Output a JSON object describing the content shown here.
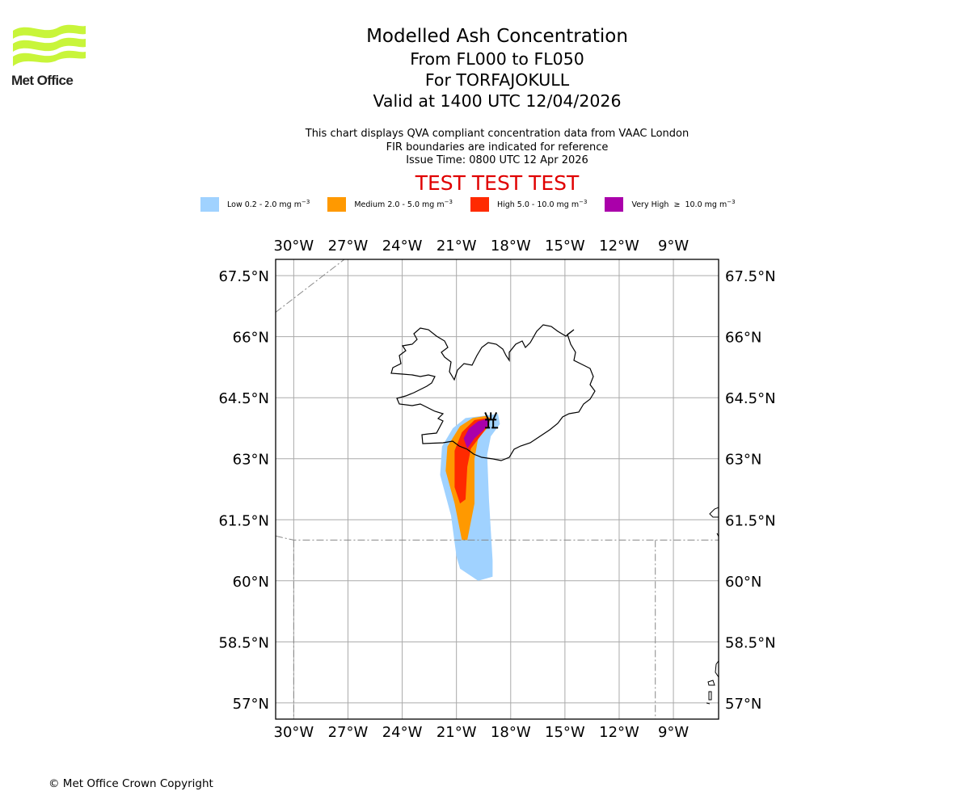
{
  "logo": {
    "name": "Met Office",
    "icon": "met-office-waves-icon",
    "color": "#c8f53a"
  },
  "header": {
    "title": "Modelled Ash Concentration",
    "level_range": "From FL000 to FL050",
    "volcano": "For TORFAJOKULL",
    "valid_time": "Valid at 1400 UTC 12/04/2026"
  },
  "description": {
    "line1": "This chart displays QVA compliant concentration data from VAAC London",
    "line2": "FIR boundaries are indicated for reference",
    "issue_time": "Issue Time: 0800 UTC 12 Apr 2026"
  },
  "test_banner": {
    "text": "TEST TEST TEST",
    "color": "#e00000"
  },
  "legend": [
    {
      "label": "Low 0.2 - 2.0 mg m",
      "exp": "−3",
      "color": "#a0d2ff"
    },
    {
      "label": "Medium 2.0 - 5.0 mg m",
      "exp": "−3",
      "color": "#ff9900"
    },
    {
      "label": "High 5.0 - 10.0 mg m",
      "exp": "−3",
      "color": "#ff2a00"
    },
    {
      "label": "Very High  ≥  10.0 mg m",
      "exp": "−3",
      "color": "#aa00aa"
    }
  ],
  "chart_data": {
    "type": "heatmap",
    "title": "Modelled Ash Concentration",
    "subtitle": "From FL000 to FL050 — For TORFAJOKULL — Valid at 1400 UTC 12/04/2026",
    "projection": "lat-lon",
    "lon_range": [
      -31,
      -6.5
    ],
    "lat_range": [
      56.6,
      67.9
    ],
    "x_ticks": [
      "30°W",
      "27°W",
      "24°W",
      "21°W",
      "18°W",
      "15°W",
      "12°W",
      "9°W"
    ],
    "x_tick_values": [
      -30,
      -27,
      -24,
      -21,
      -18,
      -15,
      -12,
      -9
    ],
    "y_ticks": [
      "67.5°N",
      "66°N",
      "64.5°N",
      "63°N",
      "61.5°N",
      "60°N",
      "58.5°N",
      "57°N"
    ],
    "y_tick_values": [
      67.5,
      66,
      64.5,
      63,
      61.5,
      60,
      58.5,
      57
    ],
    "grid": true,
    "volcano": {
      "name": "TORFAJOKULL",
      "lon": -19.1,
      "lat": 63.9
    },
    "ash_levels": [
      {
        "level": "Low",
        "color": "#a0d2ff",
        "polygon": [
          [
            -19.6,
            64.05
          ],
          [
            -18.7,
            64.1
          ],
          [
            -18.6,
            63.85
          ],
          [
            -19.1,
            63.55
          ],
          [
            -19.3,
            63.1
          ],
          [
            -19.2,
            62.0
          ],
          [
            -19.0,
            60.5
          ],
          [
            -19.0,
            60.1
          ],
          [
            -19.8,
            60.0
          ],
          [
            -20.8,
            60.3
          ],
          [
            -21.0,
            60.6
          ],
          [
            -21.3,
            61.6
          ],
          [
            -21.9,
            62.6
          ],
          [
            -21.8,
            63.3
          ],
          [
            -21.2,
            63.75
          ],
          [
            -20.5,
            64.0
          ]
        ]
      },
      {
        "level": "Medium",
        "color": "#ff9900",
        "polygon": [
          [
            -19.4,
            64.05
          ],
          [
            -19.1,
            64.0
          ],
          [
            -19.3,
            63.75
          ],
          [
            -19.8,
            63.5
          ],
          [
            -20.0,
            63.0
          ],
          [
            -20.0,
            61.9
          ],
          [
            -20.4,
            61.0
          ],
          [
            -20.7,
            61.0
          ],
          [
            -21.1,
            61.9
          ],
          [
            -21.6,
            62.7
          ],
          [
            -21.5,
            63.3
          ],
          [
            -20.8,
            63.8
          ],
          [
            -20.1,
            64.0
          ]
        ]
      },
      {
        "level": "High",
        "color": "#ff2a00",
        "polygon": [
          [
            -19.3,
            64.0
          ],
          [
            -19.2,
            63.85
          ],
          [
            -19.6,
            63.6
          ],
          [
            -20.2,
            63.25
          ],
          [
            -20.4,
            62.8
          ],
          [
            -20.5,
            62.0
          ],
          [
            -20.8,
            61.9
          ],
          [
            -21.1,
            62.3
          ],
          [
            -21.1,
            63.2
          ],
          [
            -20.7,
            63.65
          ],
          [
            -20.0,
            63.95
          ]
        ]
      },
      {
        "level": "Very High",
        "color": "#aa00aa",
        "polygon": [
          [
            -19.3,
            63.98
          ],
          [
            -19.2,
            63.85
          ],
          [
            -19.5,
            63.7
          ],
          [
            -20.0,
            63.5
          ],
          [
            -20.4,
            63.25
          ],
          [
            -20.6,
            63.5
          ],
          [
            -20.3,
            63.75
          ],
          [
            -19.8,
            63.92
          ]
        ]
      }
    ],
    "fir_boundaries": [
      {
        "name": "NW boundary",
        "style": "dash-dot",
        "points": [
          [
            -31,
            66.6
          ],
          [
            -27.2,
            67.9
          ]
        ]
      },
      {
        "name": "Scottish FIR north edge",
        "style": "dash-dot",
        "points": [
          [
            -31,
            61.1
          ],
          [
            -30,
            61.0
          ],
          [
            -10,
            61.0
          ],
          [
            -6.5,
            61.0
          ]
        ]
      },
      {
        "name": "Scottish FIR west edge",
        "style": "dash-dot",
        "points": [
          [
            -30,
            61.0
          ],
          [
            -30,
            56.6
          ]
        ]
      },
      {
        "name": "Shanwick boundary",
        "style": "dash-dot",
        "points": [
          [
            -10,
            61.0
          ],
          [
            -10,
            56.6
          ]
        ]
      }
    ]
  },
  "footer": {
    "copyright": "© Met Office Crown Copyright"
  }
}
